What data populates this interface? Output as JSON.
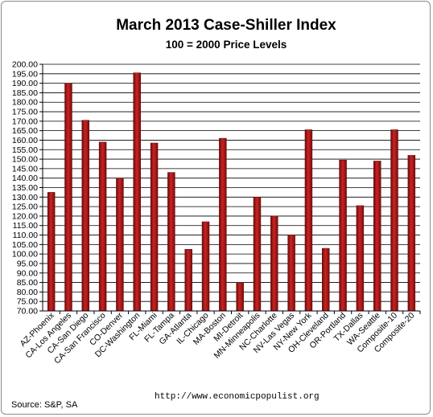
{
  "chart_data": {
    "type": "bar",
    "title": "March 2013 Case-Shiller Index",
    "subtitle": "100 = 2000 Price Levels",
    "xlabel": "",
    "ylabel": "",
    "ylim": [
      70,
      200
    ],
    "ytick_step": 5,
    "grid": true,
    "legend": "none",
    "bar_color": "#b01818",
    "categories": [
      "AZ-Phoenix",
      "CA-Los Angeles",
      "CA-San Diego",
      "CA-San Francisco",
      "CO-Denver",
      "DC-Washington",
      "FL-Miami",
      "FL-Tampa",
      "GA-Atlanta",
      "IL-Chicago",
      "MA-Boston",
      "MI-Detroit",
      "MN-Minneapolis",
      "NC-Charlotte",
      "NV-Las Vegas",
      "NY-New York",
      "OH-Cleveland",
      "OR-Portland",
      "TX-Dallas",
      "WA-Seattle",
      "Composite-10",
      "Composite-20"
    ],
    "values": [
      132.5,
      190.0,
      170.5,
      159.0,
      140.0,
      195.5,
      158.5,
      143.0,
      102.5,
      117.0,
      161.0,
      85.0,
      130.0,
      120.0,
      110.0,
      165.5,
      103.0,
      149.5,
      125.5,
      149.0,
      165.5,
      152.0
    ]
  },
  "footer": {
    "source": "Source:  S&P, SA",
    "url": "http://www.economicpopulist.org"
  }
}
